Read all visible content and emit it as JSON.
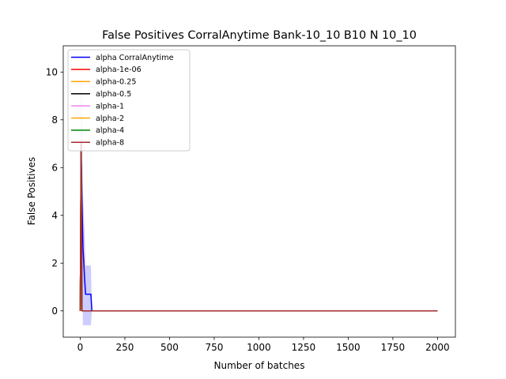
{
  "chart_data": {
    "type": "line",
    "title": "False Positives CorralAnytime Bank-10_10 B10 N 10_10",
    "xlabel": "Number of batches",
    "ylabel": "False Positives",
    "xlim": [
      -95,
      2100
    ],
    "ylim": [
      -1.1,
      11.1
    ],
    "xticks": [
      0,
      250,
      500,
      750,
      1000,
      1250,
      1500,
      1750,
      2000
    ],
    "yticks": [
      0,
      2,
      4,
      6,
      8,
      10
    ],
    "grid": false,
    "legend_position": "upper-left",
    "series": [
      {
        "name": "alpha CorralAnytime",
        "color": "#0000ff",
        "x": [
          0,
          5,
          10,
          15,
          20,
          25,
          30,
          40,
          50,
          60,
          65,
          100,
          500,
          1000,
          1500,
          2000
        ],
        "y": [
          0,
          6.7,
          4.7,
          2.7,
          2.0,
          1.3,
          0.7,
          0.7,
          0.7,
          0.7,
          0,
          0,
          0,
          0,
          0,
          0
        ],
        "band_lo": [
          0,
          3.0,
          1.5,
          -0.6,
          -0.6,
          -0.6,
          -0.6,
          -0.6,
          -0.6,
          -0.6,
          0,
          0,
          0,
          0,
          0,
          0
        ],
        "band_hi": [
          0,
          10.2,
          8.0,
          4.9,
          4.0,
          3.2,
          1.9,
          1.9,
          1.9,
          1.9,
          0,
          0,
          0,
          0,
          0,
          0
        ]
      },
      {
        "name": "alpha-1e-06",
        "color": "#ff0000",
        "x": [
          0,
          5,
          10,
          2000
        ],
        "y": [
          0,
          7.0,
          0,
          0
        ]
      },
      {
        "name": "alpha-0.25",
        "color": "#ffa500",
        "x": [
          0,
          5,
          10,
          2000
        ],
        "y": [
          0,
          7.0,
          0,
          0
        ]
      },
      {
        "name": "alpha-0.5",
        "color": "#000000",
        "x": [
          0,
          5,
          10,
          2000
        ],
        "y": [
          0,
          7.0,
          0,
          0
        ]
      },
      {
        "name": "alpha-1",
        "color": "#ee82ee",
        "x": [
          0,
          5,
          10,
          2000
        ],
        "y": [
          0,
          7.0,
          0,
          0
        ]
      },
      {
        "name": "alpha-2",
        "color": "#ffa500",
        "x": [
          0,
          5,
          10,
          2000
        ],
        "y": [
          0,
          7.0,
          0,
          0
        ]
      },
      {
        "name": "alpha-4",
        "color": "#008000",
        "x": [
          0,
          5,
          10,
          2000
        ],
        "y": [
          0,
          7.0,
          0,
          0
        ]
      },
      {
        "name": "alpha-8",
        "color": "#a52a2a",
        "x": [
          0,
          5,
          10,
          2000
        ],
        "y": [
          0,
          7.0,
          0,
          0
        ]
      }
    ]
  }
}
